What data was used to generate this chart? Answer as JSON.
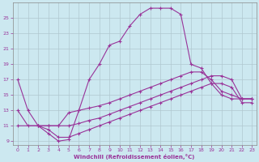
{
  "xlabel": "Windchill (Refroidissement éolien,°C)",
  "background_color": "#cce8f0",
  "line_color": "#993399",
  "grid_color": "#b0c8d0",
  "xlim": [
    -0.5,
    23.4
  ],
  "ylim": [
    8.5,
    27
  ],
  "yticks": [
    9,
    11,
    13,
    15,
    17,
    19,
    21,
    23,
    25
  ],
  "xticks": [
    0,
    1,
    2,
    3,
    4,
    5,
    6,
    7,
    8,
    9,
    10,
    11,
    12,
    13,
    14,
    15,
    16,
    17,
    18,
    19,
    20,
    21,
    22,
    23
  ],
  "line1_x": [
    0,
    1,
    2,
    3,
    4,
    5,
    6,
    7,
    8,
    9,
    10,
    11,
    12,
    13,
    14,
    15,
    16,
    17,
    18,
    19,
    20,
    21,
    22,
    23
  ],
  "line1_y": [
    17,
    13,
    11,
    10,
    9,
    9.2,
    13,
    17,
    19,
    21.5,
    22,
    24,
    25.5,
    26.3,
    26.3,
    26.3,
    25.5,
    19,
    18.5,
    16.5,
    15,
    14.5,
    14.5,
    14.5
  ],
  "line2_x": [
    0,
    1,
    2,
    3,
    4,
    5,
    6,
    7,
    8,
    9,
    10,
    11,
    12,
    13,
    14,
    15,
    16,
    17,
    18,
    19,
    20,
    21,
    22,
    23
  ],
  "line2_y": [
    13,
    11,
    11,
    11,
    11,
    12.7,
    13,
    13.3,
    13.6,
    14,
    14.5,
    15,
    15.5,
    16,
    16.5,
    17,
    17.5,
    18,
    18,
    17,
    15.5,
    15,
    14.5,
    14.5
  ],
  "line3_x": [
    0,
    2,
    3,
    4,
    5,
    6,
    7,
    8,
    9,
    10,
    11,
    12,
    13,
    14,
    15,
    16,
    17,
    18,
    19,
    20,
    21,
    22,
    23
  ],
  "line3_y": [
    11,
    11,
    11,
    11,
    11,
    11.3,
    11.7,
    12,
    12.5,
    13,
    13.5,
    14,
    14.5,
    15,
    15.5,
    16,
    16.5,
    17,
    17.5,
    17.5,
    17,
    14.5,
    14.5
  ],
  "line4_x": [
    2,
    3,
    4,
    5,
    6,
    7,
    8,
    9,
    10,
    11,
    12,
    13,
    14,
    15,
    16,
    17,
    18,
    19,
    20,
    21,
    22,
    23
  ],
  "line4_y": [
    11,
    10.5,
    9.5,
    9.5,
    10,
    10.5,
    11,
    11.5,
    12,
    12.5,
    13,
    13.5,
    14,
    14.5,
    15,
    15.5,
    16,
    16.5,
    16.5,
    16,
    14,
    14
  ]
}
